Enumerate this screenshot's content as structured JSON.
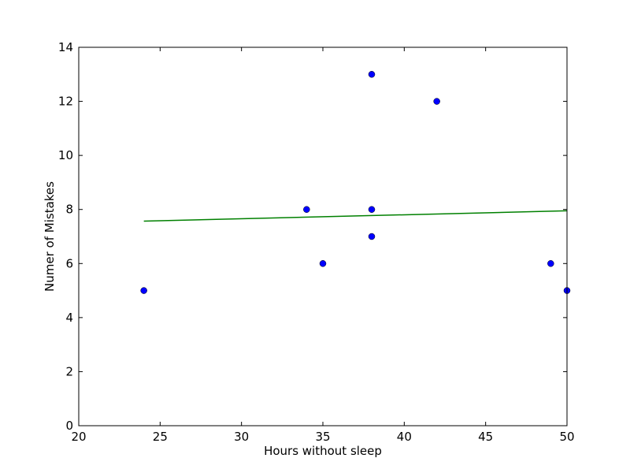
{
  "chart_data": {
    "type": "scatter",
    "title": "",
    "xlabel": "Hours without sleep",
    "ylabel": "Numer of Mistakes",
    "xlim": [
      20,
      50
    ],
    "ylim": [
      0,
      14
    ],
    "xticks": [
      20,
      25,
      30,
      35,
      40,
      45,
      50
    ],
    "yticks": [
      0,
      2,
      4,
      6,
      8,
      10,
      12,
      14
    ],
    "grid": false,
    "legend": "none",
    "series": [
      {
        "kind": "scatter",
        "color": "#0000ff",
        "points": [
          {
            "x": 24,
            "y": 5
          },
          {
            "x": 34,
            "y": 8
          },
          {
            "x": 35,
            "y": 6
          },
          {
            "x": 38,
            "y": 13
          },
          {
            "x": 38,
            "y": 8
          },
          {
            "x": 38,
            "y": 7
          },
          {
            "x": 42,
            "y": 12
          },
          {
            "x": 49,
            "y": 6
          },
          {
            "x": 50,
            "y": 5
          }
        ]
      },
      {
        "kind": "line",
        "color": "#008000",
        "points": [
          {
            "x": 24,
            "y": 7.57
          },
          {
            "x": 50,
            "y": 7.95
          }
        ]
      }
    ]
  }
}
